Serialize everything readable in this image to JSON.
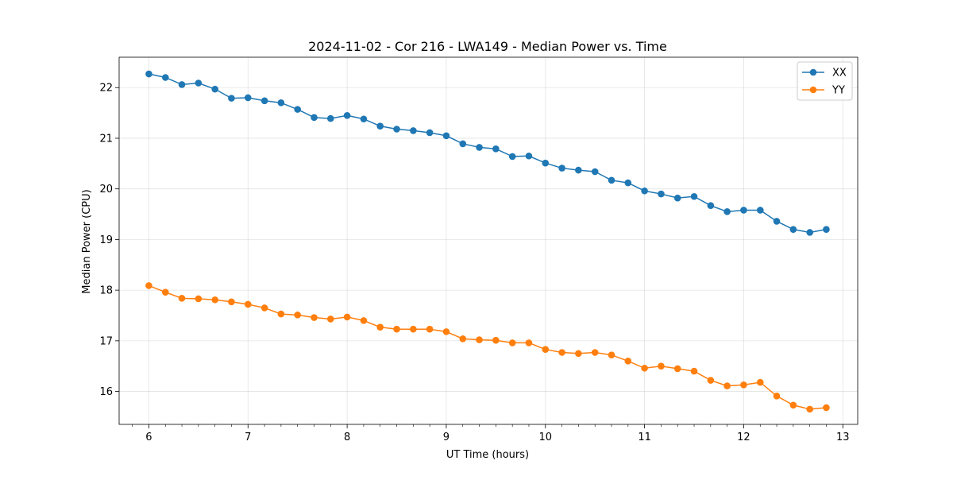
{
  "chart_data": {
    "type": "line",
    "title": "2024-11-02 - Cor 216 - LWA149 - Median Power vs. Time",
    "xlabel": "UT Time (hours)",
    "ylabel": "Median Power (CPU)",
    "xlim": [
      5.7,
      13.15
    ],
    "ylim": [
      15.35,
      22.6
    ],
    "xticks": [
      "6",
      "7",
      "8",
      "9",
      "10",
      "11",
      "12",
      "13"
    ],
    "yticks": [
      "16",
      "17",
      "18",
      "19",
      "20",
      "21",
      "22"
    ],
    "grid": true,
    "legend_position": "top-right",
    "x": [
      6.0,
      6.167,
      6.333,
      6.5,
      6.667,
      6.833,
      7.0,
      7.167,
      7.333,
      7.5,
      7.667,
      7.833,
      8.0,
      8.167,
      8.333,
      8.5,
      8.667,
      8.833,
      9.0,
      9.167,
      9.333,
      9.5,
      9.667,
      9.833,
      10.0,
      10.167,
      10.333,
      10.5,
      10.667,
      10.833,
      11.0,
      11.167,
      11.333,
      11.5,
      11.667,
      11.833,
      12.0,
      12.167,
      12.333,
      12.5,
      12.667,
      12.833
    ],
    "series": [
      {
        "name": "XX",
        "color": "#1f77b4",
        "values": [
          22.27,
          22.2,
          22.06,
          22.09,
          21.97,
          21.79,
          21.8,
          21.74,
          21.7,
          21.57,
          21.41,
          21.39,
          21.45,
          21.38,
          21.24,
          21.18,
          21.15,
          21.11,
          21.05,
          20.89,
          20.82,
          20.79,
          20.64,
          20.65,
          20.51,
          20.41,
          20.37,
          20.34,
          20.17,
          20.12,
          19.96,
          19.9,
          19.82,
          19.85,
          19.67,
          19.55,
          19.58,
          19.58,
          19.36,
          19.2,
          19.14,
          19.2
        ]
      },
      {
        "name": "YY",
        "color": "#ff7f0e",
        "values": [
          18.09,
          17.96,
          17.84,
          17.83,
          17.81,
          17.77,
          17.72,
          17.65,
          17.53,
          17.51,
          17.46,
          17.43,
          17.47,
          17.4,
          17.27,
          17.23,
          17.23,
          17.23,
          17.18,
          17.04,
          17.02,
          17.01,
          16.96,
          16.96,
          16.83,
          16.77,
          16.75,
          16.77,
          16.72,
          16.6,
          16.46,
          16.5,
          16.45,
          16.4,
          16.22,
          16.11,
          16.13,
          16.18,
          15.91,
          15.73,
          15.65,
          15.68
        ]
      }
    ]
  }
}
